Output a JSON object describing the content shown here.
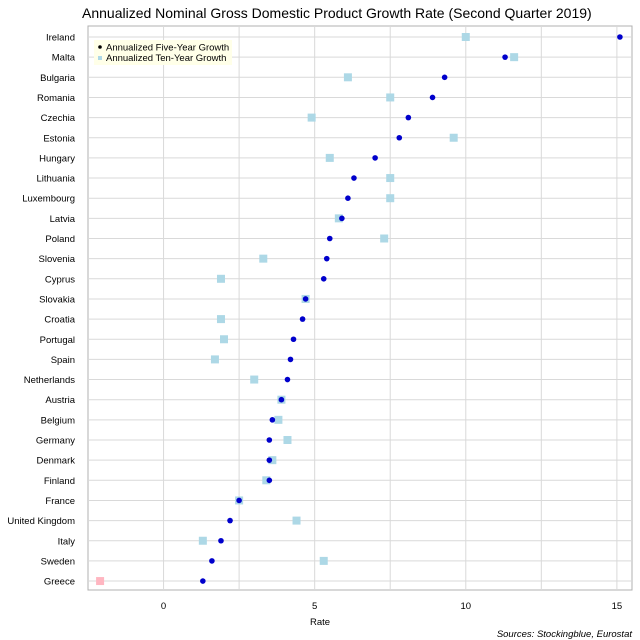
{
  "chart_data": {
    "type": "scatter",
    "title": "Annualized Nominal Gross Domestic Product Growth Rate (Second Quarter 2019)",
    "xlabel": "Rate",
    "source": "Sources: Stockingblue, Eurostat",
    "xlim": [
      -2.5,
      15.5
    ],
    "xticks": [
      0,
      5,
      10,
      15
    ],
    "grid": true,
    "legend_position": "top-left",
    "colors": {
      "five_year": "#0000cc",
      "ten_year": "#add8e6",
      "ten_year_negative": "#ffb6c1"
    },
    "categories": [
      "Ireland",
      "Malta",
      "Bulgaria",
      "Romania",
      "Czechia",
      "Estonia",
      "Hungary",
      "Lithuania",
      "Luxembourg",
      "Latvia",
      "Poland",
      "Slovenia",
      "Cyprus",
      "Slovakia",
      "Croatia",
      "Portugal",
      "Spain",
      "Netherlands",
      "Austria",
      "Belgium",
      "Germany",
      "Denmark",
      "Finland",
      "France",
      "United Kingdom",
      "Italy",
      "Sweden",
      "Greece"
    ],
    "series": [
      {
        "name": "Annualized Five-Year Growth",
        "marker": "circle",
        "values": [
          15.1,
          11.3,
          9.3,
          8.9,
          8.1,
          7.8,
          7.0,
          6.3,
          6.1,
          5.9,
          5.5,
          5.4,
          5.3,
          4.7,
          4.6,
          4.3,
          4.2,
          4.1,
          3.9,
          3.6,
          3.5,
          3.5,
          3.5,
          2.5,
          2.2,
          1.9,
          1.6,
          1.3
        ]
      },
      {
        "name": "Annualized Ten-Year Growth",
        "marker": "square",
        "values": [
          10.0,
          11.6,
          6.1,
          7.5,
          4.9,
          9.6,
          5.5,
          7.5,
          7.5,
          5.8,
          7.3,
          3.3,
          1.9,
          4.7,
          1.9,
          2.0,
          1.7,
          3.0,
          3.9,
          3.8,
          4.1,
          3.6,
          3.4,
          2.5,
          4.4,
          1.3,
          5.3,
          -2.1
        ]
      }
    ]
  }
}
